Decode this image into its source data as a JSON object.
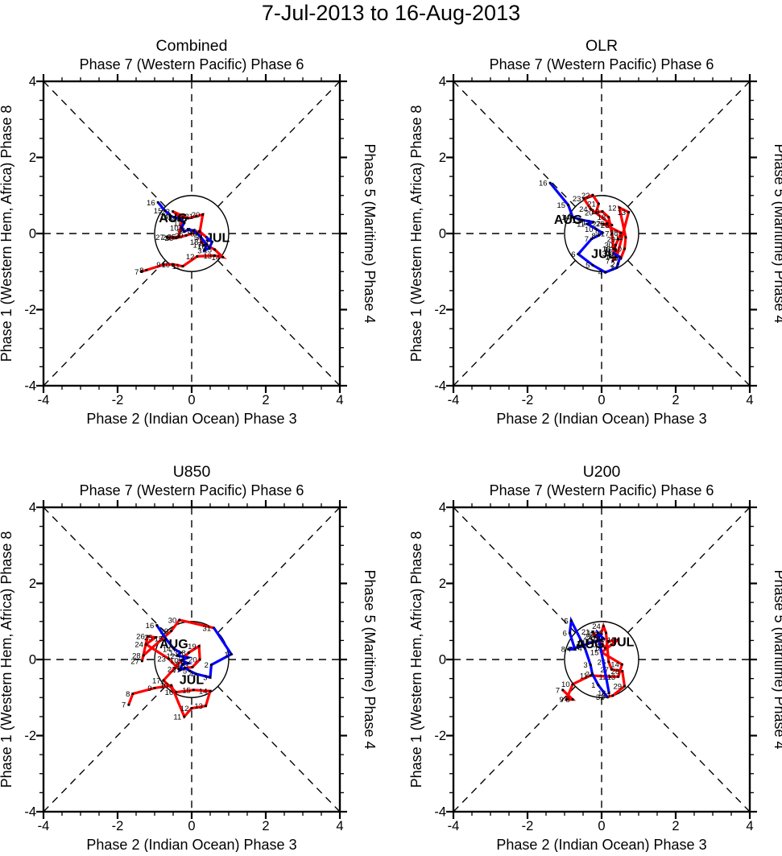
{
  "figure_title": "7-Jul-2013 to 16-Aug-2013",
  "colors": {
    "jul": "#ff0000",
    "aug": "#0000ff",
    "axis": "#000000",
    "marker": "#000000"
  },
  "axes": {
    "top_label": "Phase 7 (Western Pacific) Phase 6",
    "bottom_label": "Phase 2 (Indian Ocean) Phase 3",
    "left_label": "Phase 1 (Western Hem, Africa) Phase 8",
    "right_label": "Phase 5 (Maritime) Phase 4",
    "min": -4,
    "max": 4,
    "major_ticks": [
      -4,
      -2,
      0,
      2,
      4
    ],
    "minor_step": 0.5,
    "unit_circle_radius": 1,
    "grid": "dashed-crosshair-and-diagonals",
    "legend_position": "in-plot month labels"
  },
  "chart_data": [
    {
      "type": "line",
      "title": "Combined",
      "series": [
        {
          "name": "JUL",
          "color_key": "jul",
          "label": "JUL",
          "label_pos": [
            0.7,
            -0.22
          ],
          "points": [
            {
              "day": 7,
              "x": -1.35,
              "y": -1.0
            },
            {
              "day": 8,
              "x": -1.22,
              "y": -0.96
            },
            {
              "day": 9,
              "x": -0.76,
              "y": -0.82
            },
            {
              "day": 10,
              "x": -0.51,
              "y": -0.81
            },
            {
              "day": 11,
              "x": -0.24,
              "y": -0.86
            },
            {
              "day": 12,
              "x": 0.15,
              "y": -0.6
            },
            {
              "day": 13,
              "x": 0.62,
              "y": -0.58
            },
            {
              "day": 14,
              "x": 0.84,
              "y": -0.62
            },
            {
              "day": 15,
              "x": 0.62,
              "y": -0.42
            },
            {
              "day": 16,
              "x": 0.46,
              "y": -0.34
            },
            {
              "day": 17,
              "x": 0.34,
              "y": -0.3
            },
            {
              "day": 18,
              "x": 0.26,
              "y": -0.22
            },
            {
              "day": 19,
              "x": 0.22,
              "y": 0.05
            },
            {
              "day": 20,
              "x": 0.3,
              "y": 0.5
            },
            {
              "day": 21,
              "x": 0.12,
              "y": 0.45
            },
            {
              "day": 22,
              "x": -0.1,
              "y": 0.4
            },
            {
              "day": 23,
              "x": -0.51,
              "y": 0.58
            },
            {
              "day": 24,
              "x": -0.25,
              "y": 0.4
            },
            {
              "day": 25,
              "x": -0.35,
              "y": -0.08
            },
            {
              "day": 26,
              "x": -0.5,
              "y": -0.1
            },
            {
              "day": 27,
              "x": -0.67,
              "y": -0.1
            },
            {
              "day": 28,
              "x": -0.42,
              "y": -0.12
            },
            {
              "day": 29,
              "x": -0.15,
              "y": -0.05
            },
            {
              "day": 30,
              "x": 0.21,
              "y": 0.06
            },
            {
              "day": 31,
              "x": 0.4,
              "y": -0.1
            }
          ]
        },
        {
          "name": "AUG",
          "color_key": "aug",
          "label": "AUG",
          "label_pos": [
            -0.5,
            0.3
          ],
          "points": [
            {
              "day": 1,
              "x": 0.55,
              "y": -0.22
            },
            {
              "day": 2,
              "x": 0.48,
              "y": -0.38
            },
            {
              "day": 3,
              "x": 0.35,
              "y": -0.44
            },
            {
              "day": 4,
              "x": 0.4,
              "y": -0.28
            },
            {
              "day": 5,
              "x": 0.25,
              "y": -0.1
            },
            {
              "day": 6,
              "x": 0.15,
              "y": 0.0
            },
            {
              "day": 7,
              "x": 0.05,
              "y": 0.08
            },
            {
              "day": 8,
              "x": -0.1,
              "y": 0.1
            },
            {
              "day": 9,
              "x": -0.2,
              "y": 0.05
            },
            {
              "day": 10,
              "x": -0.28,
              "y": 0.15
            },
            {
              "day": 11,
              "x": -0.2,
              "y": 0.28
            },
            {
              "day": 12,
              "x": -0.32,
              "y": 0.4
            },
            {
              "day": 13,
              "x": -0.45,
              "y": 0.42
            },
            {
              "day": 14,
              "x": -0.55,
              "y": 0.45
            },
            {
              "day": 15,
              "x": -0.72,
              "y": 0.6
            },
            {
              "day": 16,
              "x": -0.91,
              "y": 0.82
            }
          ]
        }
      ]
    },
    {
      "type": "line",
      "title": "OLR",
      "series": [
        {
          "name": "JUL",
          "color_key": "jul",
          "label": "JUL",
          "label_pos": [
            0.05,
            -0.65
          ],
          "points": [
            {
              "day": 7,
              "x": 0.3,
              "y": -0.72
            },
            {
              "day": 8,
              "x": 0.42,
              "y": -0.58
            },
            {
              "day": 9,
              "x": 0.52,
              "y": -0.65
            },
            {
              "day": 10,
              "x": 0.62,
              "y": -0.4
            },
            {
              "day": 11,
              "x": 0.65,
              "y": -0.1
            },
            {
              "day": 12,
              "x": 0.48,
              "y": 0.68
            },
            {
              "day": 13,
              "x": 0.73,
              "y": 0.56
            },
            {
              "day": 14,
              "x": 0.41,
              "y": -0.61
            },
            {
              "day": 15,
              "x": 0.38,
              "y": -0.42
            },
            {
              "day": 16,
              "x": 0.32,
              "y": -0.4
            },
            {
              "day": 17,
              "x": 0.28,
              "y": 0.0
            },
            {
              "day": 18,
              "x": 0.19,
              "y": 0.43
            },
            {
              "day": 19,
              "x": 0.02,
              "y": 0.58
            },
            {
              "day": 20,
              "x": -0.15,
              "y": 0.55
            },
            {
              "day": 21,
              "x": -0.08,
              "y": 0.78
            },
            {
              "day": 22,
              "x": -0.24,
              "y": 1.01
            },
            {
              "day": 23,
              "x": -0.48,
              "y": 0.92
            },
            {
              "day": 24,
              "x": -0.3,
              "y": 0.65
            },
            {
              "day": 25,
              "x": 0.28,
              "y": 0.22
            },
            {
              "day": 26,
              "x": 0.15,
              "y": 0.26
            },
            {
              "day": 27,
              "x": 0.05,
              "y": 0.25
            },
            {
              "day": 28,
              "x": 0.52,
              "y": 0.02
            },
            {
              "day": 29,
              "x": 0.45,
              "y": -0.15
            },
            {
              "day": 30,
              "x": 0.38,
              "y": -0.3
            },
            {
              "day": 31,
              "x": 0.32,
              "y": -0.52
            }
          ]
        },
        {
          "name": "AUG",
          "color_key": "aug",
          "label": "AUG",
          "label_pos": [
            -0.9,
            0.25
          ],
          "points": [
            {
              "day": 1,
              "x": 0.5,
              "y": -0.62
            },
            {
              "day": 2,
              "x": 0.44,
              "y": -0.8
            },
            {
              "day": 3,
              "x": 0.41,
              "y": -0.9
            },
            {
              "day": 4,
              "x": 0.1,
              "y": -1.02
            },
            {
              "day": 5,
              "x": -0.24,
              "y": -0.83
            },
            {
              "day": 6,
              "x": -0.63,
              "y": -0.54
            },
            {
              "day": 7,
              "x": -0.27,
              "y": -0.14
            },
            {
              "day": 8,
              "x": -0.08,
              "y": -0.05
            },
            {
              "day": 9,
              "x": 0.02,
              "y": 0.02
            },
            {
              "day": 10,
              "x": -0.15,
              "y": 0.12
            },
            {
              "day": 11,
              "x": -0.38,
              "y": 0.25
            },
            {
              "day": 12,
              "x": -0.22,
              "y": 0.3
            },
            {
              "day": 13,
              "x": -0.5,
              "y": 0.35
            },
            {
              "day": 14,
              "x": -0.78,
              "y": 0.43
            },
            {
              "day": 15,
              "x": -0.9,
              "y": 0.75
            },
            {
              "day": 16,
              "x": -1.39,
              "y": 1.33
            }
          ]
        }
      ]
    },
    {
      "type": "line",
      "title": "U850",
      "series": [
        {
          "name": "JUL",
          "color_key": "jul",
          "label": "JUL",
          "label_pos": [
            0.0,
            -0.65
          ],
          "points": [
            {
              "day": 7,
              "x": -1.7,
              "y": -1.19
            },
            {
              "day": 8,
              "x": -1.59,
              "y": -0.9
            },
            {
              "day": 9,
              "x": -1.0,
              "y": -0.75
            },
            {
              "day": 10,
              "x": -0.55,
              "y": -0.68
            },
            {
              "day": 11,
              "x": -0.2,
              "y": -1.5
            },
            {
              "day": 12,
              "x": 0.0,
              "y": -1.28
            },
            {
              "day": 13,
              "x": 0.38,
              "y": -1.22
            },
            {
              "day": 14,
              "x": 0.5,
              "y": -0.83
            },
            {
              "day": 15,
              "x": 0.05,
              "y": -0.8
            },
            {
              "day": 16,
              "x": -0.42,
              "y": -0.86
            },
            {
              "day": 17,
              "x": -0.76,
              "y": -0.55
            },
            {
              "day": 18,
              "x": -0.08,
              "y": 0.18
            },
            {
              "day": 19,
              "x": 0.2,
              "y": 0.35
            },
            {
              "day": 20,
              "x": 0.22,
              "y": 0.0
            },
            {
              "day": 21,
              "x": 0.02,
              "y": -0.2
            },
            {
              "day": 22,
              "x": -0.35,
              "y": -0.25
            },
            {
              "day": 23,
              "x": -0.62,
              "y": 0.02
            },
            {
              "day": 24,
              "x": -1.23,
              "y": 0.4
            },
            {
              "day": 25,
              "x": -0.98,
              "y": 0.58
            },
            {
              "day": 26,
              "x": -1.19,
              "y": 0.61
            },
            {
              "day": 27,
              "x": -1.34,
              "y": -0.04
            },
            {
              "day": 28,
              "x": -1.3,
              "y": 0.11
            },
            {
              "day": 29,
              "x": -0.55,
              "y": 0.75
            },
            {
              "day": 30,
              "x": -0.33,
              "y": 1.04
            },
            {
              "day": 31,
              "x": 0.6,
              "y": 0.83
            }
          ]
        },
        {
          "name": "AUG",
          "color_key": "aug",
          "label": "AUG",
          "label_pos": [
            -0.48,
            0.3
          ],
          "points": [
            {
              "day": 1,
              "x": 1.07,
              "y": 0.14
            },
            {
              "day": 2,
              "x": 0.53,
              "y": -0.14
            },
            {
              "day": 3,
              "x": 0.5,
              "y": -0.47
            },
            {
              "day": 4,
              "x": 0.12,
              "y": -0.38
            },
            {
              "day": 5,
              "x": -0.05,
              "y": -0.3
            },
            {
              "day": 6,
              "x": -0.18,
              "y": -0.22
            },
            {
              "day": 7,
              "x": -0.32,
              "y": -0.28
            },
            {
              "day": 8,
              "x": -0.25,
              "y": -0.12
            },
            {
              "day": 9,
              "x": -0.1,
              "y": -0.1
            },
            {
              "day": 10,
              "x": -0.28,
              "y": -0.02
            },
            {
              "day": 11,
              "x": -0.1,
              "y": 0.05
            },
            {
              "day": 12,
              "x": -0.38,
              "y": 0.1
            },
            {
              "day": 13,
              "x": -0.3,
              "y": 0.18
            },
            {
              "day": 14,
              "x": -0.48,
              "y": 0.28
            },
            {
              "day": 15,
              "x": -0.7,
              "y": 0.55
            },
            {
              "day": 16,
              "x": -0.94,
              "y": 0.9
            }
          ]
        }
      ]
    },
    {
      "type": "line",
      "title": "U200",
      "series": [
        {
          "name": "JUL",
          "color_key": "jul",
          "label": "JUL",
          "label_pos": [
            0.55,
            0.35
          ],
          "points": [
            {
              "day": 7,
              "x": -1.05,
              "y": -0.8
            },
            {
              "day": 8,
              "x": -0.78,
              "y": -1.05
            },
            {
              "day": 9,
              "x": -0.95,
              "y": -1.05
            },
            {
              "day": 10,
              "x": -0.78,
              "y": -0.65
            },
            {
              "day": 11,
              "x": -0.3,
              "y": -0.42
            },
            {
              "day": 12,
              "x": 0.23,
              "y": -0.45
            },
            {
              "day": 13,
              "x": 0.45,
              "y": -0.45
            },
            {
              "day": 14,
              "x": 0.55,
              "y": -0.13
            },
            {
              "day": 15,
              "x": 0.0,
              "y": 0.19
            },
            {
              "day": 16,
              "x": 0.45,
              "y": 0.52
            },
            {
              "day": 17,
              "x": 0.18,
              "y": 0.48
            },
            {
              "day": 18,
              "x": 0.1,
              "y": 0.3
            },
            {
              "day": 19,
              "x": 0.02,
              "y": 0.4
            },
            {
              "day": 20,
              "x": -0.1,
              "y": 0.55
            },
            {
              "day": 21,
              "x": -0.24,
              "y": 0.73
            },
            {
              "day": 22,
              "x": -0.18,
              "y": 0.6
            },
            {
              "day": 23,
              "x": -0.02,
              "y": 0.66
            },
            {
              "day": 24,
              "x": 0.05,
              "y": 0.88
            },
            {
              "day": 25,
              "x": 0.12,
              "y": 0.7
            },
            {
              "day": 26,
              "x": 0.19,
              "y": -0.06
            },
            {
              "day": 27,
              "x": 0.27,
              "y": -0.26
            },
            {
              "day": 28,
              "x": 0.56,
              "y": -0.31
            },
            {
              "day": 29,
              "x": 0.62,
              "y": -0.7
            },
            {
              "day": 30,
              "x": 0.3,
              "y": -0.95
            },
            {
              "day": 31,
              "x": 0.15,
              "y": -0.98
            }
          ]
        },
        {
          "name": "AUG",
          "color_key": "aug",
          "label": "AUG",
          "label_pos": [
            -0.31,
            0.3
          ],
          "points": [
            {
              "day": 1,
              "x": -0.09,
              "y": -0.67
            },
            {
              "day": 2,
              "x": -0.25,
              "y": -0.38
            },
            {
              "day": 3,
              "x": -0.3,
              "y": -0.14
            },
            {
              "day": 4,
              "x": -0.45,
              "y": 0.3
            },
            {
              "day": 5,
              "x": -0.82,
              "y": 1.02
            },
            {
              "day": 6,
              "x": -0.86,
              "y": 0.7
            },
            {
              "day": 7,
              "x": -0.72,
              "y": 0.27
            },
            {
              "day": 8,
              "x": -0.9,
              "y": 0.27
            },
            {
              "day": 9,
              "x": -0.5,
              "y": 0.35
            },
            {
              "day": 10,
              "x": -0.38,
              "y": 0.42
            },
            {
              "day": 11,
              "x": -0.25,
              "y": 0.45
            },
            {
              "day": 12,
              "x": -0.12,
              "y": 0.48
            },
            {
              "day": 13,
              "x": -0.02,
              "y": 0.52
            },
            {
              "day": 14,
              "x": 0.05,
              "y": 0.55
            },
            {
              "day": 15,
              "x": -0.1,
              "y": 0.7
            },
            {
              "day": 16,
              "x": 0.2,
              "y": -0.88
            }
          ]
        }
      ]
    }
  ]
}
